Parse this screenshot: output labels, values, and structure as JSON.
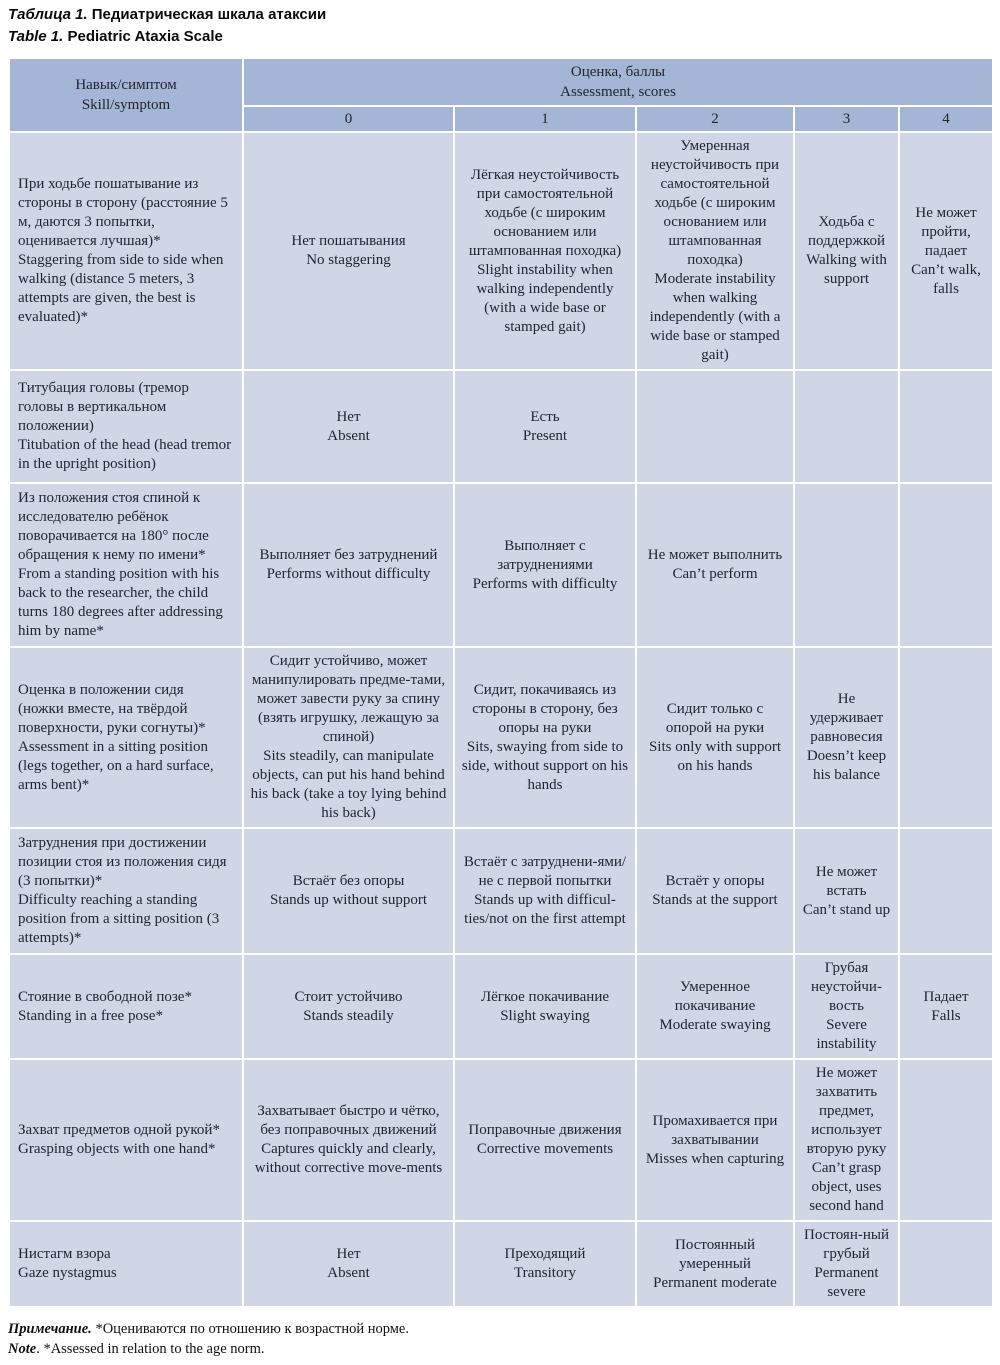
{
  "captions": {
    "ru": {
      "lead": "Таблица 1.",
      "rest": " Педиатрическая шкала атаксии"
    },
    "en": {
      "lead": "Table 1.",
      "rest": " Pediatric Ataxia Scale"
    }
  },
  "notes": {
    "ru": {
      "lead": "Примечание.",
      "rest": " *Оцениваются по отношению к возрастной норме."
    },
    "en": {
      "lead": "Note",
      "rest": ". *Assessed in relation to the age norm."
    }
  },
  "table": {
    "colors": {
      "header_bg": "#a4b5d6",
      "body_bg": "#d1d6e7",
      "border": "#ffffff",
      "text": "#22252d"
    },
    "header": {
      "skill": {
        "ru": "Навык/симптом",
        "en": "Skill/symptom"
      },
      "assessment": {
        "ru": "Оценка, баллы",
        "en": "Assessment, scores"
      },
      "scores": [
        "0",
        "1",
        "2",
        "3",
        "4"
      ]
    },
    "rows": [
      {
        "skill": {
          "ru": "При ходьбе пошатывание из стороны в сторону (расстояние 5 м, даются 3 попытки, оценивается лучшая)*",
          "en": "Staggering from side to side when walking (distance 5 meters, 3 attempts are given, the best is evaluated)*"
        },
        "cells": [
          {
            "ru": "Нет пошатывания",
            "en": "No staggering"
          },
          {
            "ru": "Лёгкая неустойчивость при самостоятельной ходьбе (с широким основанием или штампованная походка)",
            "en": "Slight instability when walking independently (with a wide base or stamped gait)"
          },
          {
            "ru": "Умеренная неустойчивость при самостоятельной ходьбе (с широким основанием или штампованная походка)",
            "en": "Moderate instability when walking independently (with a wide base or stamped gait)"
          },
          {
            "ru": "Ходьба с поддержкой",
            "en": "Walking with support"
          },
          {
            "ru": "Не может пройти, падает",
            "en": "Can’t walk, falls"
          }
        ]
      },
      {
        "skill": {
          "ru": "Титубация головы (тремор головы в вертикальном положении)",
          "en": "Titubation of the head (head tremor in the upright position)"
        },
        "cells": [
          {
            "ru": "Нет",
            "en": "Absent"
          },
          {
            "ru": "Есть",
            "en": "Present"
          },
          null,
          null,
          null
        ]
      },
      {
        "skill": {
          "ru": "Из положения стоя спиной к исследователю ребёнок поворачивается на 180° после обращения к нему по имени*",
          "en": "From a standing position with his back to the researcher, the child turns 180 degrees after addressing him by name*"
        },
        "cells": [
          {
            "ru": "Выполняет без затруднений",
            "en": "Performs without difficulty"
          },
          {
            "ru": "Выполняет с затруднениями",
            "en": "Performs with difficulty"
          },
          {
            "ru": "Не может выполнить",
            "en": "Can’t perform"
          },
          null,
          null
        ]
      },
      {
        "skill": {
          "ru": "Оценка в положении сидя (ножки вместе, на твёрдой поверхности, руки согнуты)*",
          "en": "Assessment in a sitting position (legs together, on a hard surface, arms bent)*"
        },
        "cells": [
          {
            "ru": "Сидит устойчиво, может манипулировать предме-тами, может завести руку за спину (взять игрушку, лежащую за спиной)",
            "en": "Sits steadily, can manipulate objects, can put his hand behind his back (take a toy lying behind his back)"
          },
          {
            "ru": "Сидит, покачиваясь из стороны в сторону, без опоры на руки",
            "en": "Sits, swaying from side to side, without support on his hands"
          },
          {
            "ru": "Сидит только с опорой на руки",
            "en": "Sits only with support on his hands"
          },
          {
            "ru": "Не удерживает равновесия",
            "en": "Doesn’t keep his balance"
          },
          null
        ]
      },
      {
        "skill": {
          "ru": "Затруднения при достижении позиции стоя из положения сидя (3 попытки)*",
          "en": "Difficulty reaching a standing position from a sitting position (3 attempts)*"
        },
        "cells": [
          {
            "ru": "Встаёт без опоры",
            "en": "Stands up without support"
          },
          {
            "ru": "Встаёт с затруднени-ями/не с первой попытки",
            "en": "Stands up with difficul-ties/not on the first attempt"
          },
          {
            "ru": "Встаёт у опоры",
            "en": "Stands at the support"
          },
          {
            "ru": "Не может встать",
            "en": "Can’t stand up"
          },
          null
        ]
      },
      {
        "skill": {
          "ru": "Стояние в свободной позе*",
          "en": "Standing in a free pose*"
        },
        "cells": [
          {
            "ru": "Стоит устойчиво",
            "en": "Stands steadily"
          },
          {
            "ru": "Лёгкое покачивание",
            "en": "Slight swaying"
          },
          {
            "ru": "Умеренное покачивание",
            "en": "Moderate swaying"
          },
          {
            "ru": "Грубая неустойчи-вость",
            "en": "Severe instability"
          },
          {
            "ru": "Падает",
            "en": "Falls"
          }
        ]
      },
      {
        "skill": {
          "ru": "Захват предметов одной рукой*",
          "en": "Grasping objects with one hand*"
        },
        "cells": [
          {
            "ru": "Захватывает быстро и чётко, без поправочных движений",
            "en": "Captures quickly and clearly, without corrective move-ments"
          },
          {
            "ru": "Поправочные движения",
            "en": "Corrective movements"
          },
          {
            "ru": "Промахивается при захватывании",
            "en": "Misses when capturing"
          },
          {
            "ru": "Не может захватить предмет, использует вторую руку",
            "en": "Can’t grasp object, uses second hand"
          },
          null
        ]
      },
      {
        "skill": {
          "ru": "Нистагм взора",
          "en": "Gaze nystagmus"
        },
        "cells": [
          {
            "ru": "Нет",
            "en": "Absent"
          },
          {
            "ru": "Преходящий",
            "en": "Transitory"
          },
          {
            "ru": "Постоянный умеренный",
            "en": "Permanent moderate"
          },
          {
            "ru": "Постоян-ный грубый",
            "en": "Permanent severe"
          },
          null
        ]
      }
    ]
  }
}
